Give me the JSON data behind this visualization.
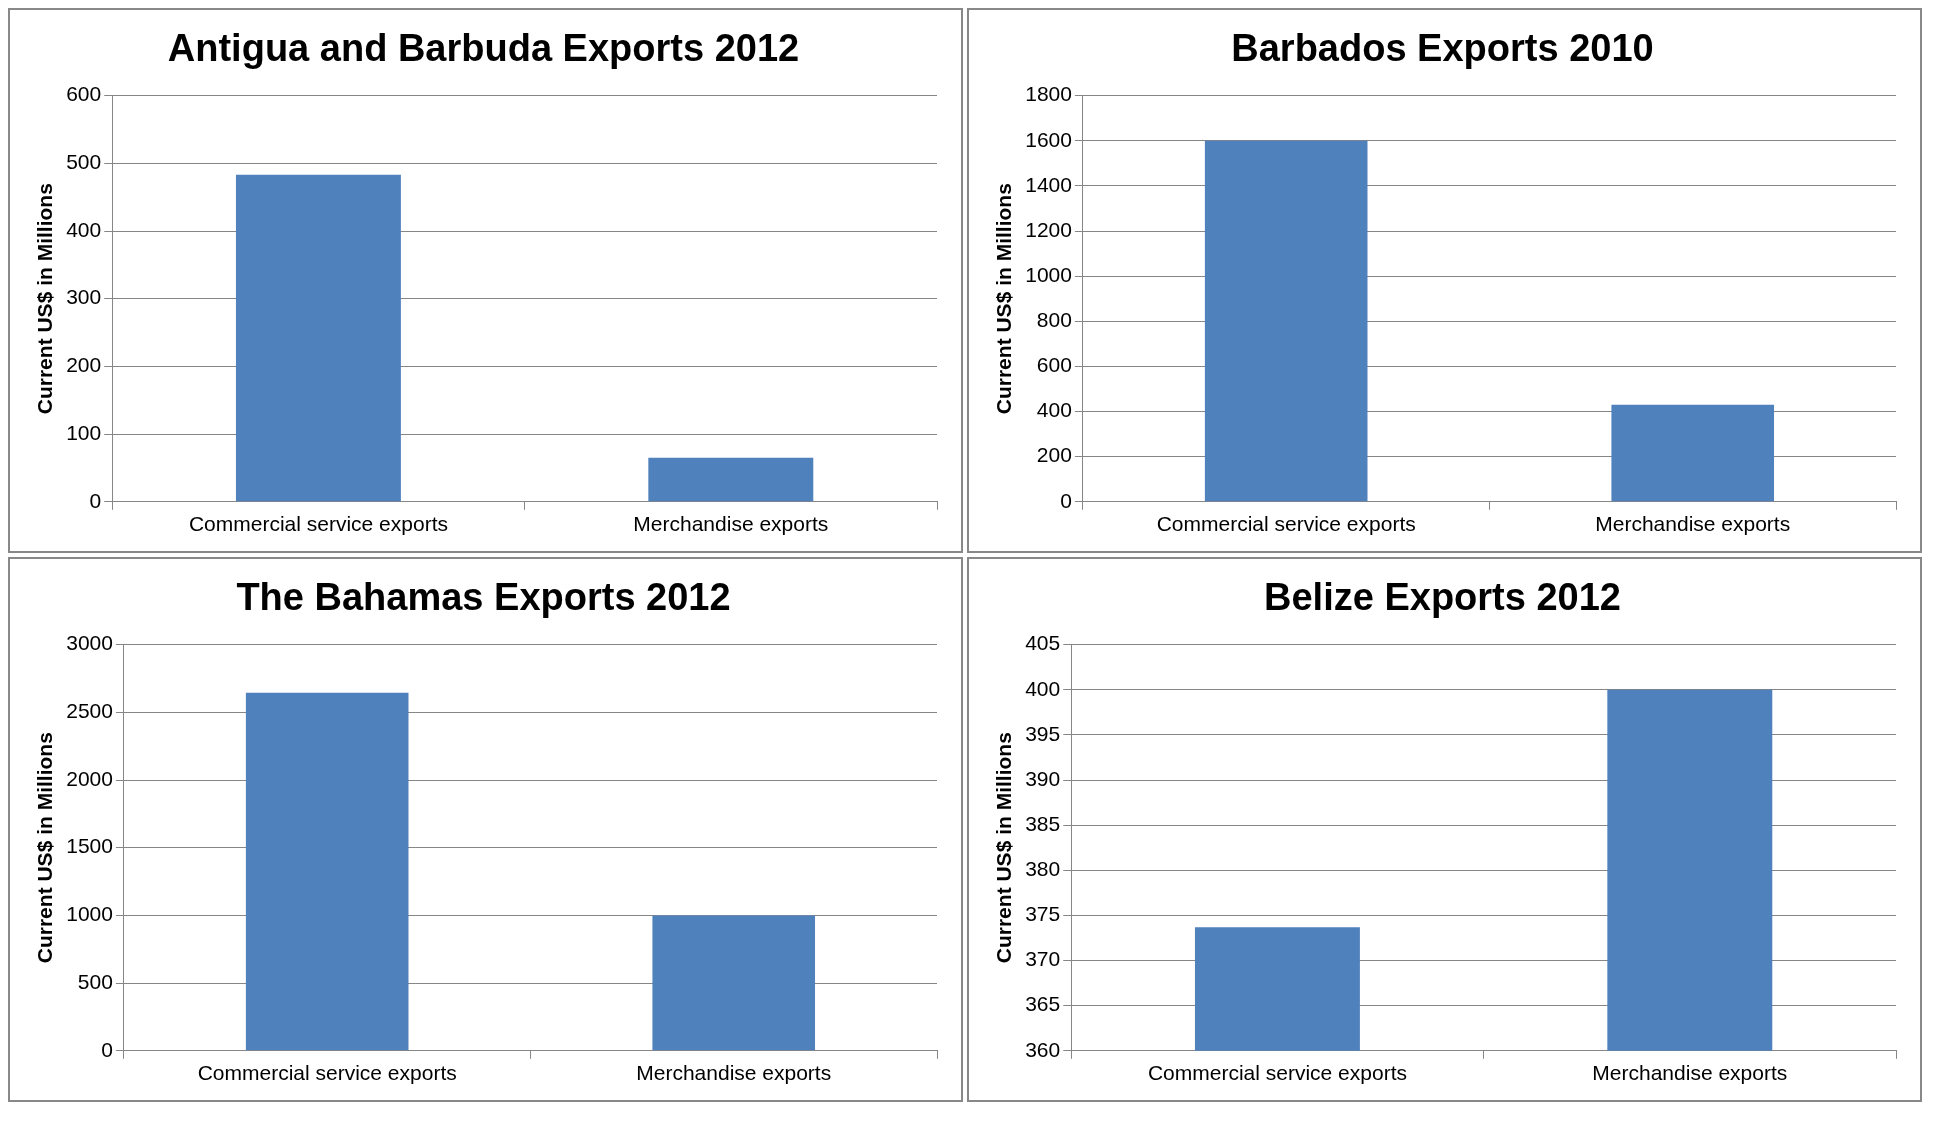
{
  "chart_data": [
    {
      "type": "bar",
      "title": "Antigua and Barbuda Exports 2012",
      "ylabel": "Current US$ in Millions",
      "categories": [
        "Commercial service exports",
        "Merchandise exports"
      ],
      "values": [
        483,
        65
      ],
      "color": "#4f81bd",
      "ylim": [
        0,
        600
      ],
      "yticks": [
        0,
        100,
        200,
        300,
        400,
        500,
        600
      ],
      "grid": "y"
    },
    {
      "type": "bar",
      "title": "Barbados Exports 2010",
      "ylabel": "Current US$ in Millions",
      "categories": [
        "Commercial service exports",
        "Merchandise exports"
      ],
      "values": [
        1600,
        430
      ],
      "color": "#4f81bd",
      "ylim": [
        0,
        1800
      ],
      "yticks": [
        0,
        200,
        400,
        600,
        800,
        1000,
        1200,
        1400,
        1600,
        1800
      ],
      "grid": "y"
    },
    {
      "type": "bar",
      "title": "The Bahamas Exports 2012",
      "ylabel": "Current US$ in Millions",
      "categories": [
        "Commercial service exports",
        "Merchandise exports"
      ],
      "values": [
        2645,
        1000
      ],
      "color": "#4f81bd",
      "ylim": [
        0,
        3000
      ],
      "yticks": [
        0,
        500,
        1000,
        1500,
        2000,
        2500,
        3000
      ],
      "grid": "y"
    },
    {
      "type": "bar",
      "title": "Belize Exports 2012",
      "ylabel": "Current US$ in Millions",
      "categories": [
        "Commercial service exports",
        "Merchandise exports"
      ],
      "values": [
        373.7,
        400
      ],
      "color": "#4f81bd",
      "ylim": [
        360,
        405
      ],
      "yticks": [
        360,
        365,
        370,
        375,
        380,
        385,
        390,
        395,
        400,
        405
      ],
      "grid": "y"
    }
  ]
}
